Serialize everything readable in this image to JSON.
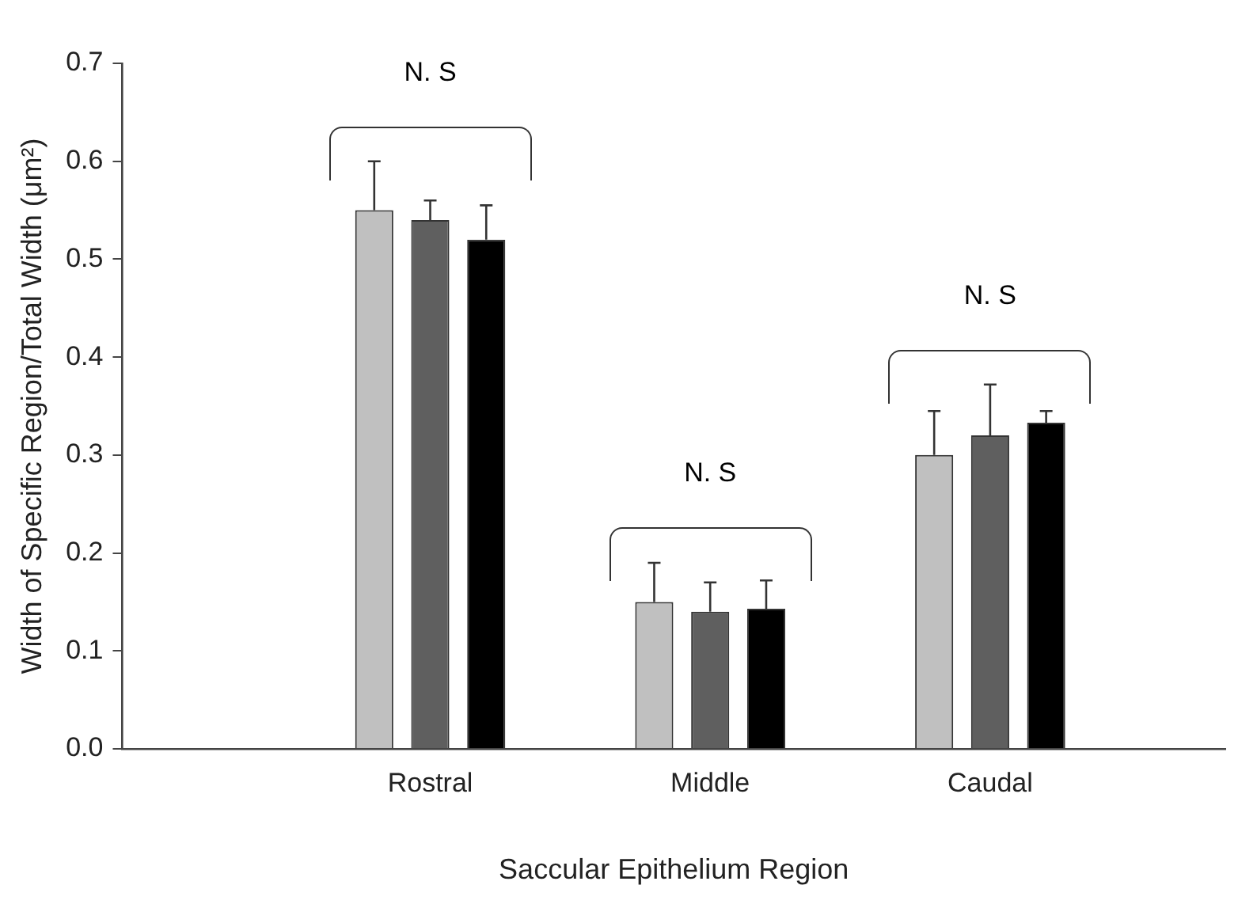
{
  "chart_data": {
    "type": "bar",
    "xlabel": "Saccular Epithelium Region",
    "ylabel": "Width of Specific Region/Total Width (μm²)",
    "categories": [
      "Rostral",
      "Middle",
      "Caudal"
    ],
    "series": [
      {
        "color": "#c0c0c0",
        "values": [
          0.55,
          0.15,
          0.3
        ],
        "errors": [
          [
            0.55,
            0.6
          ],
          [
            0.15,
            0.19
          ],
          [
            0.3,
            0.345
          ]
        ]
      },
      {
        "color": "#5f5f5f",
        "values": [
          0.54,
          0.14,
          0.32
        ],
        "errors": [
          [
            0.54,
            0.56
          ],
          [
            0.14,
            0.17
          ],
          [
            0.32,
            0.372
          ]
        ]
      },
      {
        "color": "#000000",
        "values": [
          0.52,
          0.143,
          0.333
        ],
        "errors": [
          [
            0.52,
            0.555
          ],
          [
            0.143,
            0.172
          ],
          [
            0.333,
            0.345
          ]
        ]
      }
    ],
    "ylim": [
      0,
      0.7
    ],
    "yticks": [
      {
        "value": 0,
        "label": "0.0"
      },
      {
        "value": 0.1,
        "label": "0.1"
      },
      {
        "value": 0.2,
        "label": "0.2"
      },
      {
        "value": 0.3,
        "label": "0.3"
      },
      {
        "value": 0.4,
        "label": "0.4"
      },
      {
        "value": 0.5,
        "label": "0.5"
      },
      {
        "value": 0.6,
        "label": "0.6"
      },
      {
        "value": 0.7,
        "label": "0.7"
      }
    ],
    "grid": false,
    "legend": false,
    "annotations": [
      "N. S",
      "N. S",
      "N. S"
    ]
  }
}
